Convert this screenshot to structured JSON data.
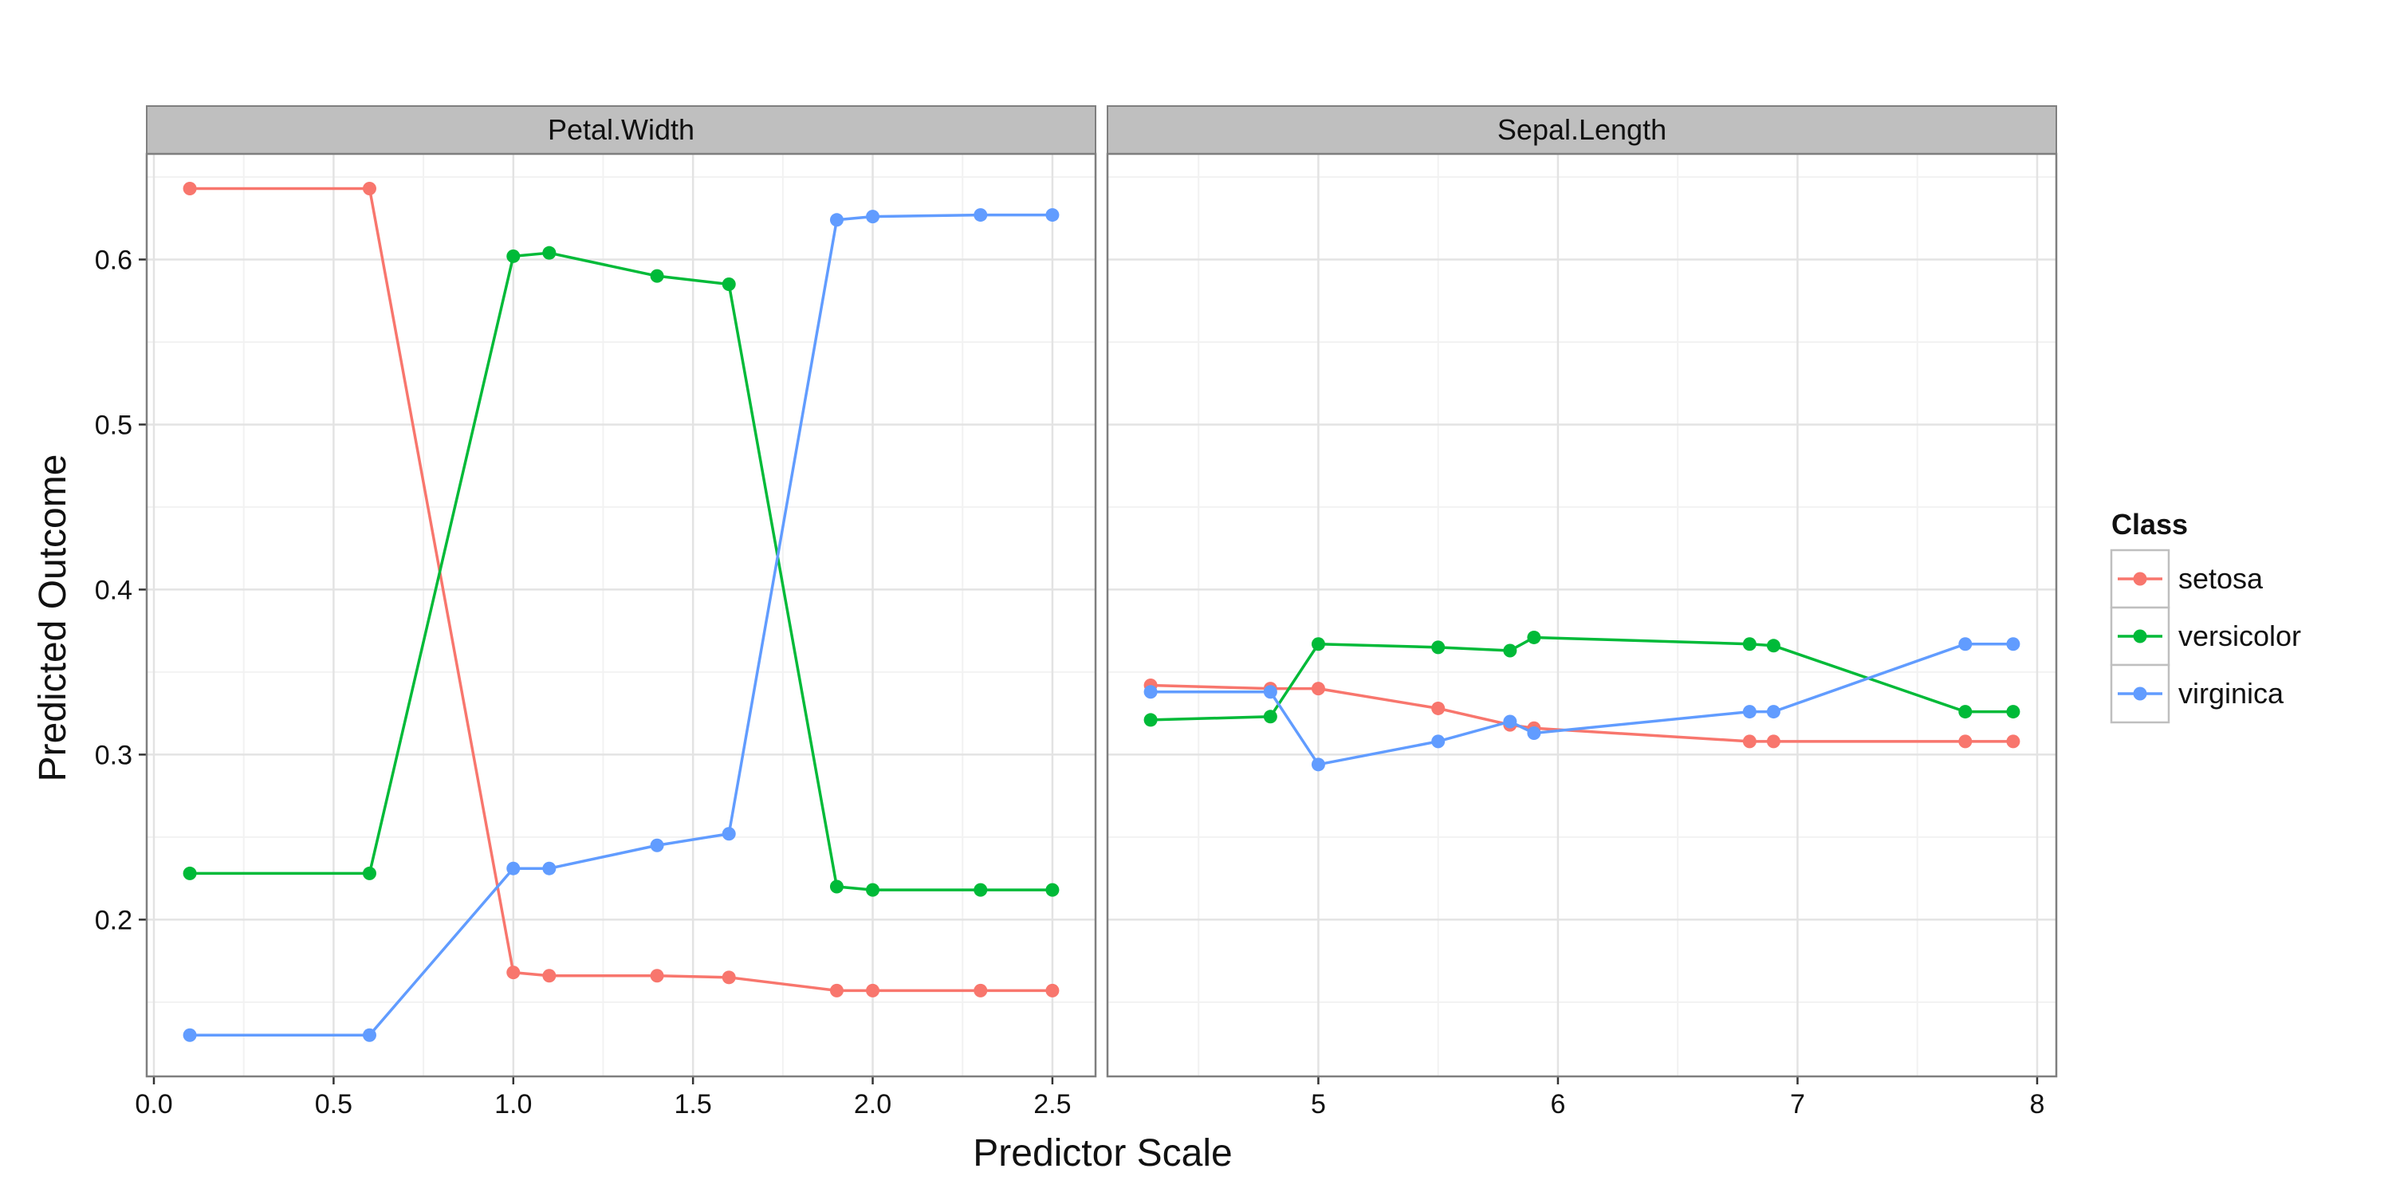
{
  "chart_data": {
    "type": "line",
    "xlabel": "Predictor Scale",
    "ylabel": "Predicted Outcome",
    "ylim": [
      0.105,
      0.664
    ],
    "yticks": [
      0.2,
      0.3,
      0.4,
      0.5,
      0.6
    ],
    "ytick_labels": [
      "0.2",
      "0.3",
      "0.4",
      "0.5",
      "0.6"
    ],
    "grid": true,
    "legend": {
      "title": "Class",
      "position": "right",
      "entries": [
        "setosa",
        "versicolor",
        "virginica"
      ]
    },
    "colors": {
      "setosa": "#F8766D",
      "versicolor": "#00BA38",
      "virginica": "#619CFF"
    },
    "panels": [
      {
        "strip": "Petal.Width",
        "xlim": [
          -0.02,
          2.62
        ],
        "xticks": [
          0.0,
          0.5,
          1.0,
          1.5,
          2.0,
          2.5
        ],
        "xtick_labels": [
          "0.0",
          "0.5",
          "1.0",
          "1.5",
          "2.0",
          "2.5"
        ],
        "x": [
          0.1,
          0.6,
          1.0,
          1.1,
          1.4,
          1.6,
          1.9,
          2.0,
          2.3,
          2.5
        ],
        "series": [
          {
            "name": "setosa",
            "values": [
              0.643,
              0.643,
              0.168,
              0.166,
              0.166,
              0.165,
              0.157,
              0.157,
              0.157,
              0.157
            ]
          },
          {
            "name": "versicolor",
            "values": [
              0.228,
              0.228,
              0.602,
              0.604,
              0.59,
              0.585,
              0.22,
              0.218,
              0.218,
              0.218
            ]
          },
          {
            "name": "virginica",
            "values": [
              0.13,
              0.13,
              0.231,
              0.231,
              0.245,
              0.252,
              0.624,
              0.626,
              0.627,
              0.627
            ]
          }
        ]
      },
      {
        "strip": "Sepal.Length",
        "xlim": [
          4.12,
          8.08
        ],
        "xticks": [
          5,
          6,
          7,
          8
        ],
        "xtick_labels": [
          "5",
          "6",
          "7",
          "8"
        ],
        "x": [
          4.3,
          4.8,
          5.0,
          5.5,
          5.8,
          5.9,
          6.8,
          6.9,
          7.7,
          7.9
        ],
        "series": [
          {
            "name": "setosa",
            "values": [
              0.342,
              0.34,
              0.34,
              0.328,
              0.318,
              0.316,
              0.308,
              0.308,
              0.308,
              0.308
            ]
          },
          {
            "name": "versicolor",
            "values": [
              0.321,
              0.323,
              0.367,
              0.365,
              0.363,
              0.371,
              0.367,
              0.366,
              0.326,
              0.326
            ]
          },
          {
            "name": "virginica",
            "values": [
              0.338,
              0.338,
              0.294,
              0.308,
              0.32,
              0.313,
              0.326,
              0.326,
              0.367,
              0.367
            ]
          }
        ]
      }
    ]
  }
}
